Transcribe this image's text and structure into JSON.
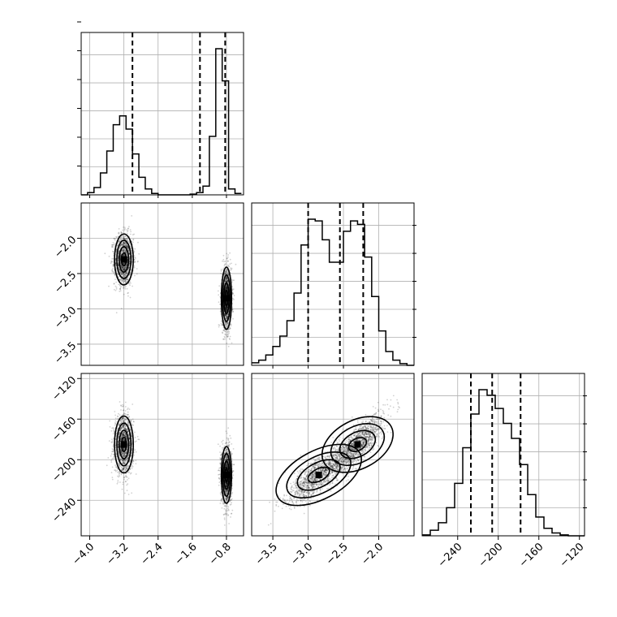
{
  "chart_data": {
    "type": "corner",
    "parameters": [
      {
        "axis_ticks": [
          "−4.0",
          "−3.2",
          "−2.4",
          "−1.6",
          "−0.8"
        ],
        "range": [
          -4.2,
          -0.4
        ],
        "hist": {
          "edges": [
            -4.2,
            -4.05,
            -3.9,
            -3.75,
            -3.6,
            -3.45,
            -3.3,
            -3.15,
            -3.0,
            -2.85,
            -2.7,
            -2.55,
            -2.4,
            -2.25,
            -2.1,
            -1.95,
            -1.8,
            -1.65,
            -1.5,
            -1.35,
            -1.2,
            -1.05,
            -0.9,
            -0.75,
            -0.6,
            -0.45
          ],
          "counts": [
            0,
            0.015,
            0.05,
            0.15,
            0.3,
            0.48,
            0.54,
            0.45,
            0.28,
            0.12,
            0.04,
            0.01,
            0,
            0,
            0,
            0,
            0,
            0.005,
            0.015,
            0.06,
            0.4,
            1.0,
            0.78,
            0.04,
            0.01
          ],
          "quantiles": [
            -3.0,
            -1.42,
            -0.83
          ]
        }
      },
      {
        "axis_ticks": [
          "−3.5",
          "−3.0",
          "−2.5",
          "−2.0"
        ],
        "y_ticks": [
          "−2.0",
          "−2.5",
          "−3.0",
          "−3.5"
        ],
        "range": [
          -3.8,
          -1.5
        ],
        "hist": {
          "edges": [
            -3.8,
            -3.7,
            -3.6,
            -3.5,
            -3.4,
            -3.3,
            -3.2,
            -3.1,
            -3.0,
            -2.9,
            -2.8,
            -2.7,
            -2.6,
            -2.5,
            -2.4,
            -2.3,
            -2.2,
            -2.1,
            -2.0,
            -1.9,
            -1.8,
            -1.7,
            -1.6,
            -1.5
          ],
          "counts": [
            0.015,
            0.03,
            0.06,
            0.11,
            0.17,
            0.26,
            0.42,
            0.7,
            0.85,
            0.84,
            0.73,
            0.6,
            0.6,
            0.78,
            0.84,
            0.82,
            0.63,
            0.4,
            0.2,
            0.08,
            0.03,
            0.01,
            0.0
          ],
          "quantiles": [
            -3.0,
            -2.55,
            -2.22
          ]
        }
      },
      {
        "axis_ticks": [
          "−240",
          "−200",
          "−160",
          "−120"
        ],
        "y_ticks": [
          "−120",
          "−160",
          "−200",
          "−240"
        ],
        "range": [
          -275,
          -115
        ],
        "hist": {
          "edges": [
            -275,
            -267,
            -259,
            -251,
            -243,
            -235,
            -227,
            -219,
            -211,
            -203,
            -195,
            -187,
            -179,
            -171,
            -163,
            -155,
            -147,
            -139,
            -131,
            -123,
            -115
          ],
          "counts": [
            0.005,
            0.03,
            0.07,
            0.15,
            0.28,
            0.47,
            0.65,
            0.78,
            0.75,
            0.68,
            0.6,
            0.52,
            0.38,
            0.22,
            0.1,
            0.04,
            0.015,
            0.005,
            0.0,
            0.0
          ],
          "quantiles": [
            -227,
            -206,
            -178
          ]
        }
      }
    ],
    "clusters": [
      {
        "means": [
          -3.2,
          -2.3,
          -185
        ],
        "sds": [
          0.11,
          0.18,
          14
        ],
        "weight": 0.5,
        "corr12": 0.2
      },
      {
        "means": [
          -0.8,
          -2.85,
          -215
        ],
        "sds": [
          0.06,
          0.22,
          14
        ],
        "weight": 0.5,
        "corr12": 0.7
      }
    ],
    "grid": true,
    "legend": "none"
  }
}
